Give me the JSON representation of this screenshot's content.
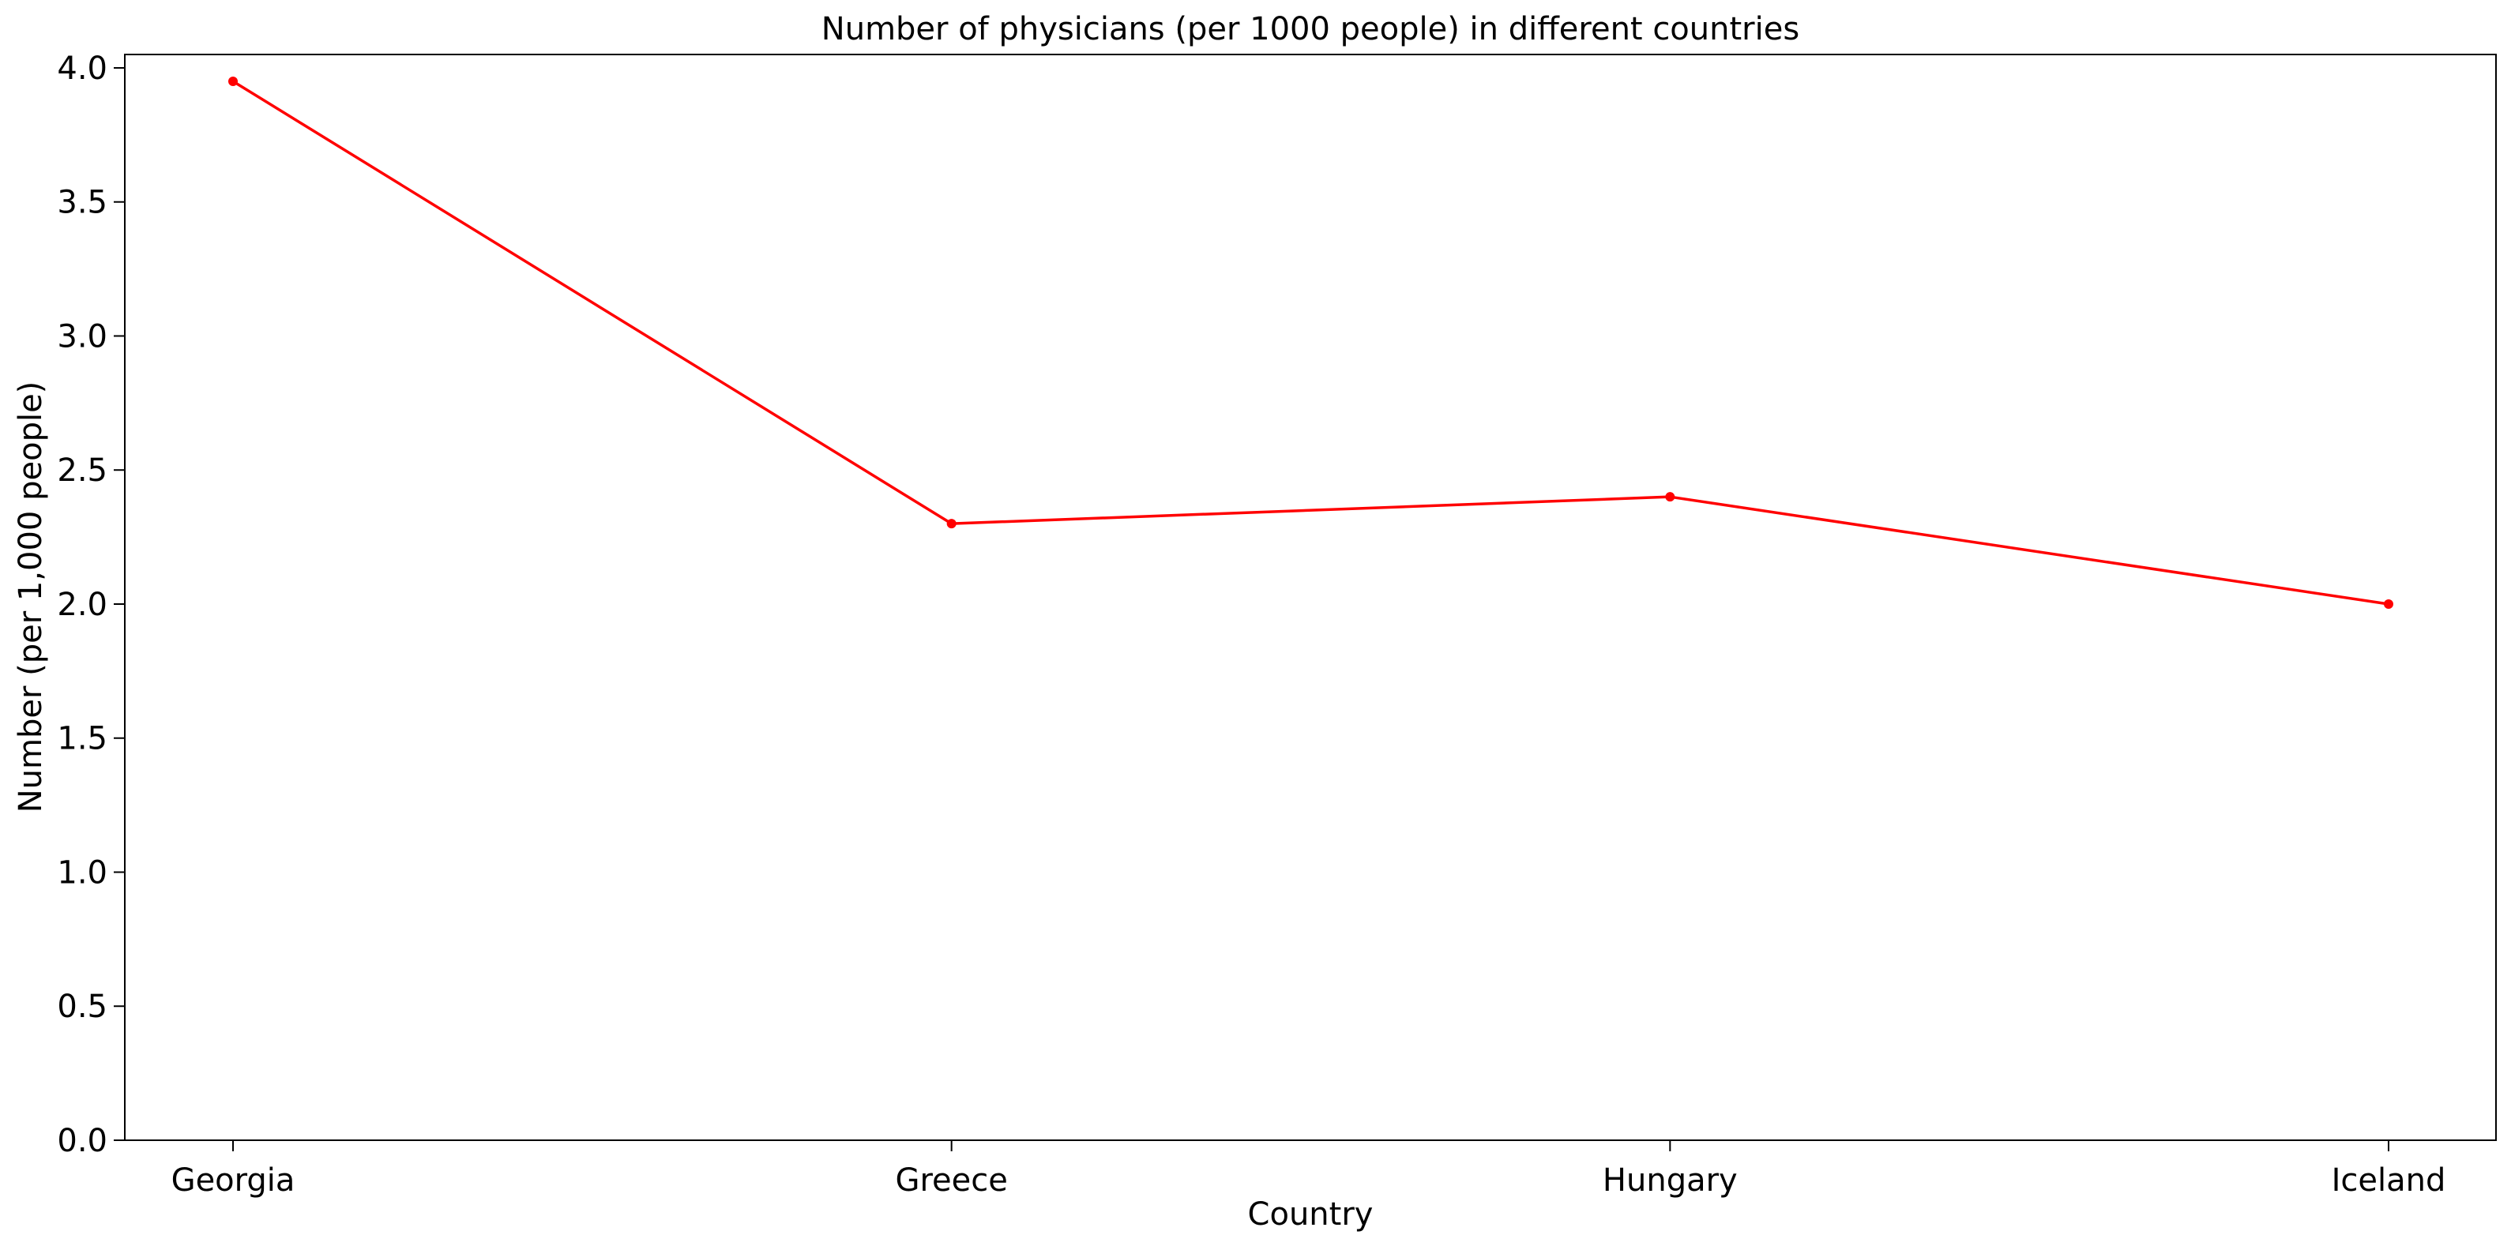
{
  "chart_data": {
    "type": "line",
    "title": "Number of physicians (per 1000 people) in different countries",
    "xlabel": "Country",
    "ylabel": "Number (per 1,000 people)",
    "categories": [
      "Georgia",
      "Greece",
      "Hungary",
      "Iceland"
    ],
    "series": [
      {
        "values": [
          3.95,
          2.3,
          2.4,
          2.0
        ],
        "color": "#ff0000",
        "marker": "dot"
      }
    ],
    "ylim": [
      0,
      4.05
    ],
    "yticks": [
      0.0,
      0.5,
      1.0,
      1.5,
      2.0,
      2.5,
      3.0,
      3.5,
      4.0
    ],
    "ytick_labels": [
      "0.0",
      "0.5",
      "1.0",
      "1.5",
      "2.0",
      "2.5",
      "3.0",
      "3.5",
      "4.0"
    ],
    "grid": false,
    "legend": "none"
  }
}
